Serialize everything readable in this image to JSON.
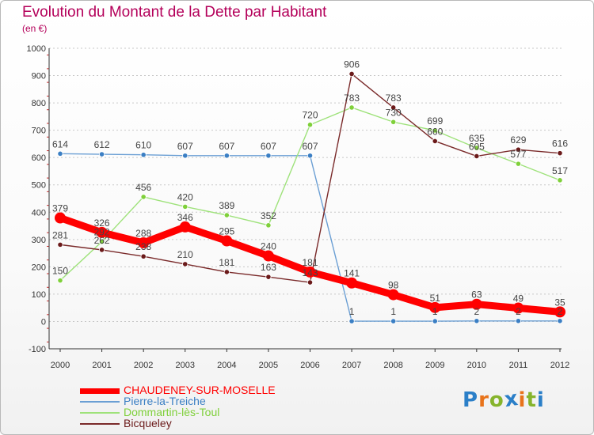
{
  "header": {
    "title": "Evolution du Montant de la Dette par Habitant",
    "subtitle": "(en €)"
  },
  "logo": {
    "letters": [
      "P",
      "r",
      "o",
      "x",
      "i",
      "t",
      "i"
    ],
    "colors": [
      "#2b7fc8",
      "#e8731b",
      "#86b42c",
      "#2b7fc8",
      "#e8731b",
      "#86b42c",
      "#2b7fc8"
    ]
  },
  "chart_data": {
    "type": "line",
    "title": "Evolution du Montant de la Dette par Habitant",
    "subtitle": "(en €)",
    "xlabel": "",
    "ylabel": "",
    "ylim": [
      -100,
      1000
    ],
    "yticks": [
      -100,
      0,
      100,
      200,
      300,
      400,
      500,
      600,
      700,
      800,
      900,
      1000
    ],
    "categories": [
      "2000",
      "2001",
      "2002",
      "2003",
      "2004",
      "2005",
      "2006",
      "2007",
      "2008",
      "2009",
      "2010",
      "2011",
      "2012"
    ],
    "grid": "horizontal dashed",
    "legend_position": "bottom-left",
    "series": [
      {
        "name": "CHAUDENEY-SUR-MOSELLE",
        "color": "#ff0000",
        "style": "thick",
        "values": [
          379,
          326,
          288,
          346,
          295,
          240,
          181,
          141,
          98,
          51,
          63,
          49,
          35
        ]
      },
      {
        "name": "Pierre-la-Treiche",
        "color": "#6b9fd4",
        "marker": "#3b7fc4",
        "style": "thin",
        "values": [
          614,
          612,
          610,
          607,
          607,
          607,
          607,
          1,
          1,
          1,
          2,
          2,
          2
        ]
      },
      {
        "name": "Dommartin-lès-Toul",
        "color": "#9ee27a",
        "marker": "#7fd03a",
        "style": "thin",
        "values": [
          150,
          292,
          456,
          420,
          389,
          352,
          720,
          783,
          730,
          699,
          635,
          577,
          517
        ]
      },
      {
        "name": "Bicqueley",
        "color": "#7a2a2a",
        "marker": "#6b1a1a",
        "style": "thin",
        "values": [
          281,
          262,
          238,
          210,
          181,
          163,
          143,
          906,
          783,
          660,
          605,
          629,
          616
        ]
      }
    ]
  }
}
